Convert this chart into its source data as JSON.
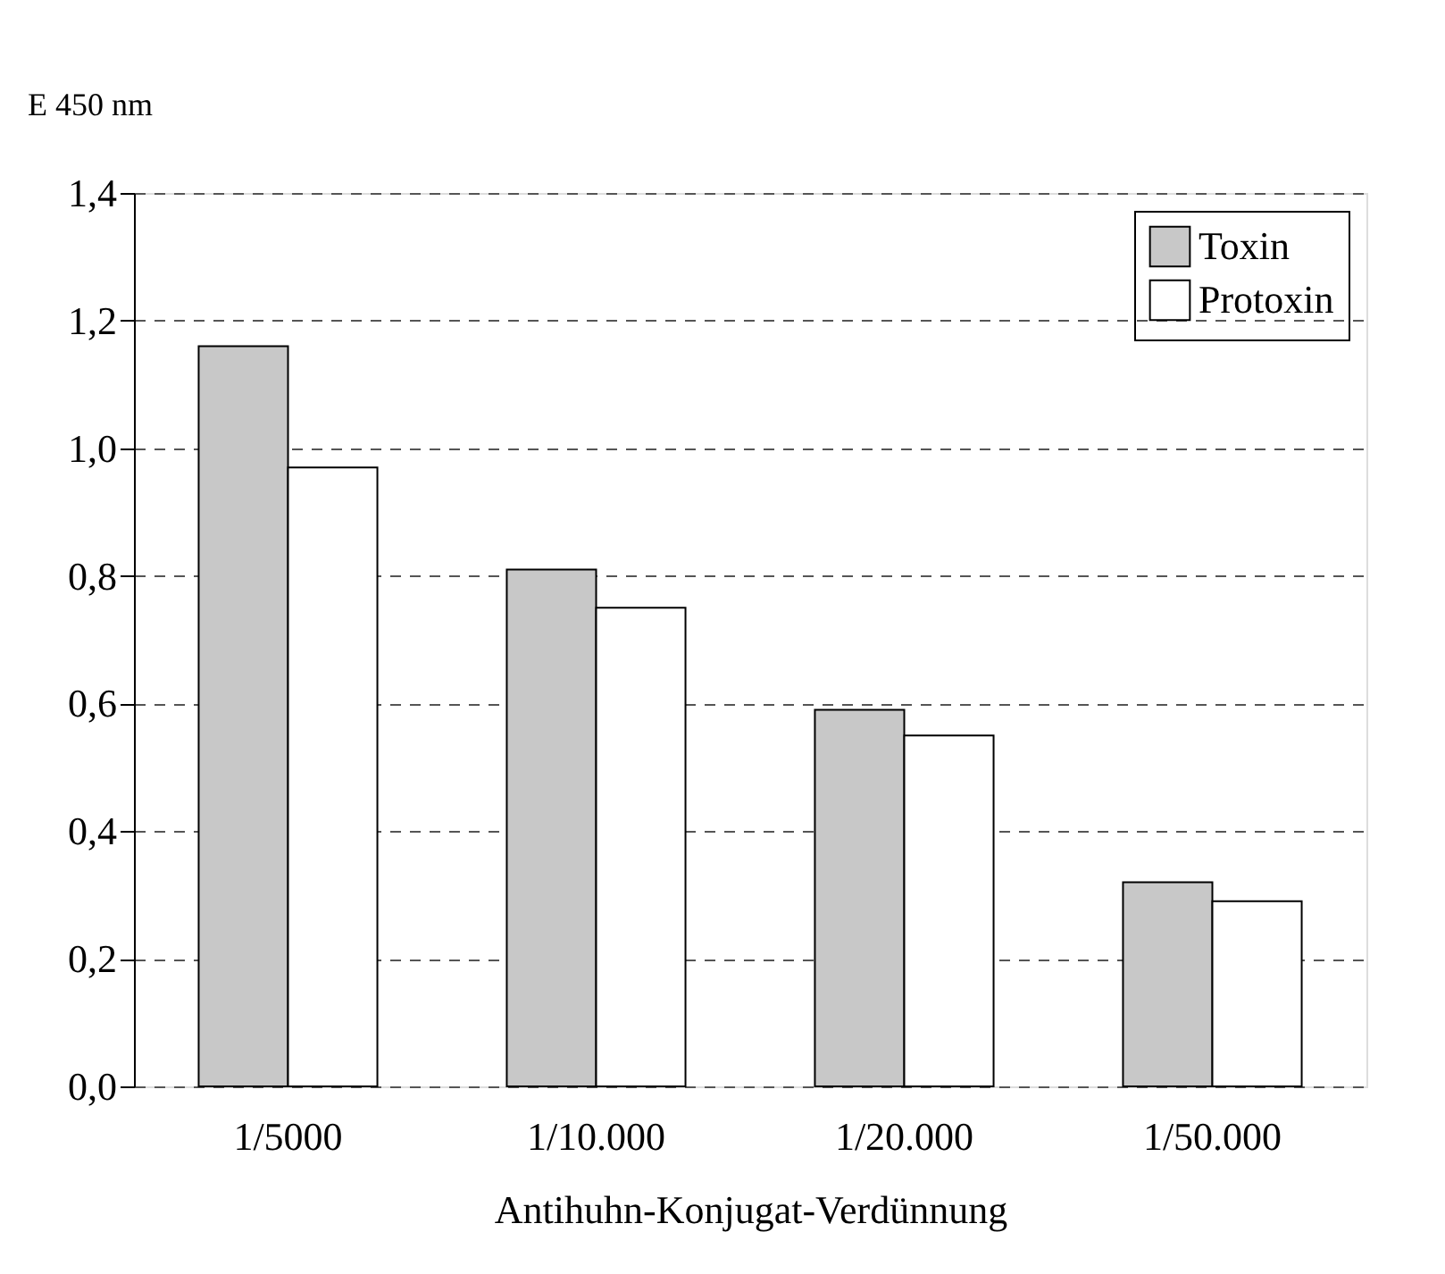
{
  "chart_data": {
    "type": "bar",
    "ylabel": "E 450 nm",
    "xlabel": "Antihuhn-Konjugat-Verdünnung",
    "categories": [
      "1/5000",
      "1/10.000",
      "1/20.000",
      "1/50.000"
    ],
    "series": [
      {
        "name": "Toxin",
        "color": "#c8c8c8",
        "values": [
          1.16,
          0.81,
          0.59,
          0.32
        ]
      },
      {
        "name": "Protoxin",
        "color": "#ffffff",
        "values": [
          0.97,
          0.75,
          0.55,
          0.29
        ]
      }
    ],
    "ylim": [
      0,
      1.4
    ],
    "yticks": [
      {
        "value": 0,
        "label": "0,0"
      },
      {
        "value": 0.2,
        "label": "0,2"
      },
      {
        "value": 0.4,
        "label": "0,4"
      },
      {
        "value": 0.6,
        "label": "0,6"
      },
      {
        "value": 0.8,
        "label": "0,8"
      },
      {
        "value": 1.0,
        "label": "1,0"
      },
      {
        "value": 1.2,
        "label": "1,2"
      },
      {
        "value": 1.4,
        "label": "1,4"
      }
    ],
    "grid": "y",
    "legend": "top right"
  }
}
